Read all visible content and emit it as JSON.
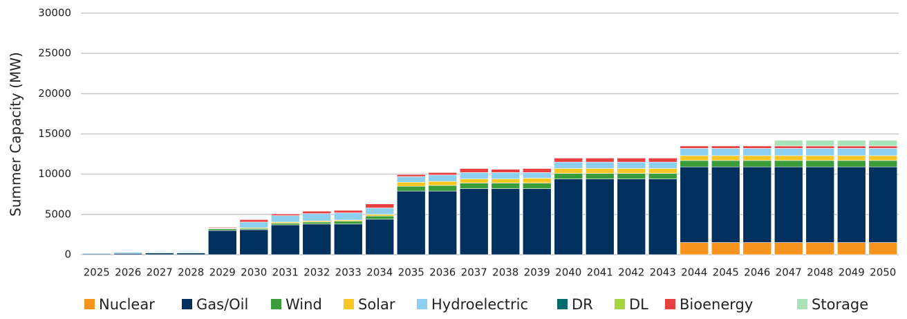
{
  "chart_data": {
    "type": "stacked_bar",
    "y_label": "Summer Capacity (MW)",
    "categories": [
      "2025",
      "2026",
      "2027",
      "2028",
      "2029",
      "2030",
      "2031",
      "2032",
      "2033",
      "2034",
      "2035",
      "2036",
      "2037",
      "2038",
      "2039",
      "2040",
      "2041",
      "2042",
      "2043",
      "2044",
      "2045",
      "2046",
      "2047",
      "2048",
      "2049",
      "2050"
    ],
    "series": [
      {
        "name": "Nuclear",
        "color": "#f7941d",
        "values": [
          0,
          0,
          0,
          0,
          0,
          0,
          0,
          0,
          0,
          0,
          0,
          0,
          0,
          0,
          0,
          0,
          0,
          0,
          0,
          1500,
          1500,
          1500,
          1500,
          1500,
          1500,
          1500
        ]
      },
      {
        "name": "Gas/Oil",
        "color": "#00305e",
        "values": [
          100,
          150,
          200,
          200,
          3000,
          3100,
          3700,
          3800,
          3800,
          4400,
          7900,
          7900,
          8200,
          8200,
          8200,
          9400,
          9400,
          9400,
          9400,
          9400,
          9400,
          9400,
          9400,
          9400,
          9400,
          9400
        ]
      },
      {
        "name": "Wind",
        "color": "#3a9d3a",
        "values": [
          0,
          0,
          50,
          50,
          200,
          150,
          200,
          250,
          350,
          400,
          600,
          700,
          700,
          700,
          700,
          700,
          700,
          700,
          700,
          800,
          800,
          800,
          800,
          800,
          800,
          800
        ]
      },
      {
        "name": "Solar",
        "color": "#f9c623",
        "values": [
          0,
          0,
          0,
          0,
          50,
          100,
          150,
          150,
          150,
          200,
          500,
          500,
          500,
          500,
          600,
          600,
          600,
          600,
          600,
          600,
          600,
          600,
          600,
          600,
          600,
          600
        ]
      },
      {
        "name": "Hydroelectric",
        "color": "#8ccff0",
        "values": [
          100,
          150,
          100,
          100,
          50,
          700,
          800,
          900,
          900,
          800,
          700,
          800,
          800,
          800,
          700,
          800,
          800,
          800,
          800,
          900,
          900,
          900,
          900,
          900,
          900,
          900
        ]
      },
      {
        "name": "DR",
        "color": "#006b6b",
        "values": [
          0,
          0,
          0,
          0,
          0,
          0,
          0,
          0,
          0,
          0,
          0,
          0,
          0,
          0,
          0,
          0,
          0,
          0,
          0,
          0,
          0,
          0,
          0,
          0,
          0,
          0
        ]
      },
      {
        "name": "DL",
        "color": "#a5d63f",
        "values": [
          0,
          0,
          0,
          0,
          0,
          0,
          0,
          0,
          0,
          0,
          0,
          0,
          0,
          0,
          0,
          0,
          0,
          0,
          0,
          0,
          0,
          0,
          0,
          0,
          0,
          0
        ]
      },
      {
        "name": "Bioenergy",
        "color": "#e8403f",
        "values": [
          50,
          0,
          50,
          50,
          100,
          300,
          200,
          300,
          300,
          500,
          250,
          300,
          500,
          400,
          500,
          500,
          500,
          500,
          500,
          300,
          300,
          300,
          300,
          300,
          300,
          300
        ]
      },
      {
        "name": "Storage",
        "color": "#a8e4b8",
        "values": [
          0,
          0,
          0,
          0,
          0,
          0,
          0,
          0,
          0,
          0,
          0,
          0,
          0,
          0,
          0,
          0,
          0,
          0,
          0,
          0,
          0,
          0,
          700,
          700,
          700,
          700
        ]
      }
    ],
    "ylim": [
      0,
      30000
    ],
    "yticks": [
      0,
      5000,
      10000,
      15000,
      20000,
      25000,
      30000
    ],
    "grid": true,
    "legend": "bottom"
  }
}
